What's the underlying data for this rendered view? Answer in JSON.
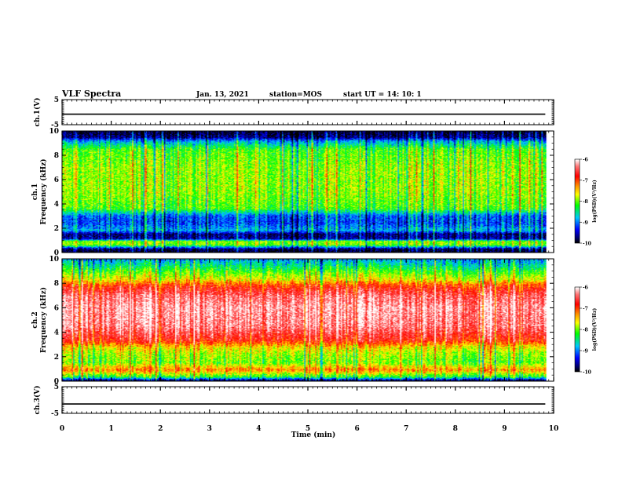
{
  "header": {
    "title": "VLF Spectra",
    "date": "Jan. 13, 2021",
    "station": "station=MOS",
    "start": "start UT =  14: 10: 1"
  },
  "chart_data": [
    {
      "type": "line",
      "title": "",
      "ylabel": "ch.1(V)",
      "ylim": [
        -5,
        5
      ],
      "yticks": [
        "5",
        "-5"
      ],
      "x": [
        0,
        9.83
      ],
      "series": [
        {
          "values": [
            -0.8,
            -0.8
          ]
        }
      ]
    },
    {
      "type": "heatmap",
      "ylabel": "ch.1 Frequency (kHz)",
      "ylim": [
        0,
        10
      ],
      "yticks": [
        "0",
        "2",
        "4",
        "6",
        "8",
        "10"
      ],
      "xlim": [
        0,
        10
      ],
      "data_end_min": 9.83,
      "colorbar": {
        "label": "log(PSD)(V²/Hz)",
        "range": [
          -10,
          -6
        ],
        "ticks": [
          "-6",
          "-7",
          "-8",
          "-9",
          "-10"
        ]
      },
      "frequency_profile_log_psd": [
        {
          "f": 0.0,
          "v": -9.9
        },
        {
          "f": 0.25,
          "v": -9.8
        },
        {
          "f": 0.6,
          "v": -8.0
        },
        {
          "f": 0.9,
          "v": -7.9
        },
        {
          "f": 1.1,
          "v": -9.6
        },
        {
          "f": 1.5,
          "v": -9.7
        },
        {
          "f": 1.8,
          "v": -8.8
        },
        {
          "f": 2.4,
          "v": -9.2
        },
        {
          "f": 3.0,
          "v": -9.1
        },
        {
          "f": 3.6,
          "v": -8.1
        },
        {
          "f": 5.0,
          "v": -7.9
        },
        {
          "f": 7.0,
          "v": -7.9
        },
        {
          "f": 8.5,
          "v": -8.1
        },
        {
          "f": 9.2,
          "v": -8.9
        },
        {
          "f": 9.5,
          "v": -9.7
        },
        {
          "f": 10.0,
          "v": -9.9
        }
      ]
    },
    {
      "type": "heatmap",
      "ylabel": "ch.2 Frequency (kHz)",
      "ylim": [
        0,
        10
      ],
      "yticks": [
        "0",
        "2",
        "4",
        "6",
        "8",
        "10"
      ],
      "xlim": [
        0,
        10
      ],
      "data_end_min": 9.83,
      "colorbar": {
        "label": "log(PSD)(V²/Hz)",
        "range": [
          -10,
          -6
        ],
        "ticks": [
          "-6",
          "-7",
          "-8",
          "-9",
          "-10"
        ]
      },
      "frequency_profile_log_psd": [
        {
          "f": 0.0,
          "v": -9.9
        },
        {
          "f": 0.3,
          "v": -8.3
        },
        {
          "f": 0.9,
          "v": -7.2
        },
        {
          "f": 1.5,
          "v": -8.0
        },
        {
          "f": 2.3,
          "v": -7.8
        },
        {
          "f": 2.8,
          "v": -7.5
        },
        {
          "f": 3.3,
          "v": -6.8
        },
        {
          "f": 4.5,
          "v": -6.3
        },
        {
          "f": 6.0,
          "v": -6.2
        },
        {
          "f": 7.0,
          "v": -6.4
        },
        {
          "f": 7.8,
          "v": -6.9
        },
        {
          "f": 8.3,
          "v": -7.6
        },
        {
          "f": 9.0,
          "v": -8.1
        },
        {
          "f": 9.6,
          "v": -8.6
        },
        {
          "f": 10.0,
          "v": -8.9
        }
      ]
    },
    {
      "type": "line",
      "ylabel": "ch.3(V)",
      "ylim": [
        -5,
        5
      ],
      "yticks": [
        "5",
        "-5"
      ],
      "x": [
        0,
        9.83
      ],
      "series": [
        {
          "values": [
            -1.5,
            -1.5
          ]
        }
      ]
    }
  ],
  "xaxis": {
    "label": "Time (min)",
    "ticks": [
      "0",
      "1",
      "2",
      "3",
      "4",
      "5",
      "6",
      "7",
      "8",
      "9",
      "10"
    ]
  },
  "colors": {
    "colormap": [
      "#ffffff",
      "#ff0000",
      "#ff8000",
      "#ffff00",
      "#00ff00",
      "#00ffff",
      "#0000ff",
      "#000080",
      "#000000"
    ]
  }
}
